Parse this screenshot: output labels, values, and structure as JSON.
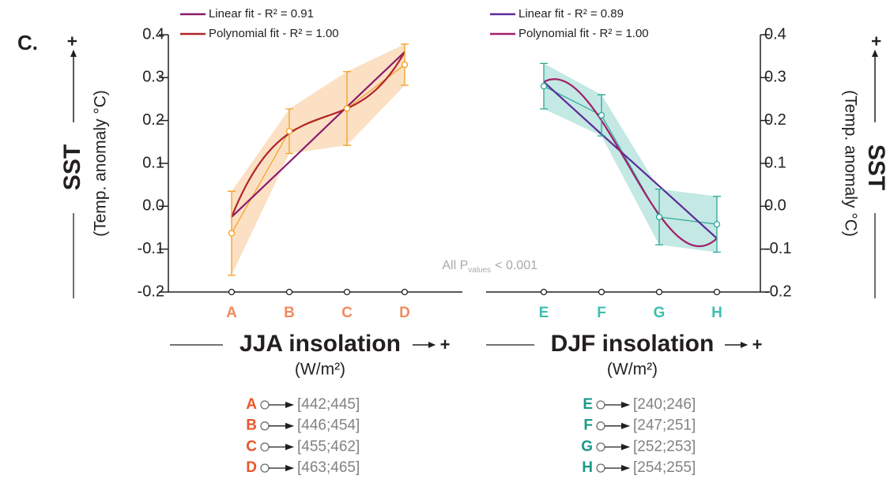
{
  "panel_label": "C.",
  "annotation": {
    "prefix": "All P",
    "subscript": "values",
    "suffix": "< 0.001"
  },
  "chart_data": [
    {
      "type": "line",
      "y_axis_side": "left",
      "x_axis_label": "JJA insolation",
      "x_axis_plus": "+",
      "x_axis_unit": "(W/m²)",
      "y_axis_label": "SST",
      "y_axis_plus": "+",
      "y_axis_sublabel": "(Temp. anomaly °C)",
      "categories": [
        "A",
        "B",
        "C",
        "D"
      ],
      "category_color": "#f08a60",
      "category_ranges": [
        "[442;445]",
        "[446;454]",
        "[455;462]",
        "[463;465]"
      ],
      "range_label_color": "#e8572a",
      "values": [
        -0.063,
        0.175,
        0.228,
        0.33
      ],
      "errors": [
        0.098,
        0.052,
        0.086,
        0.048
      ],
      "color": "#f4a020",
      "band_color": "#fbe0c4",
      "series": [
        {
          "name": "Linear fit - R² = 0.91",
          "fit": "linear",
          "color": "#8b1a6b",
          "values": [
            -0.025,
            0.103,
            0.232,
            0.36
          ]
        },
        {
          "name": "Polynomial fit - R² = 1.00",
          "fit": "polynomial",
          "color": "#b0252a",
          "values": [
            -0.025,
            0.17,
            0.228,
            0.36
          ]
        }
      ],
      "ylim": [
        -0.2,
        0.4
      ],
      "yticks": [
        0.4,
        0.3,
        0.2,
        0.1,
        {
          "value": 0,
          "label": "0.0"
        },
        -0.1,
        -0.2
      ]
    },
    {
      "type": "line",
      "y_axis_side": "right",
      "x_axis_label": "DJF insolation",
      "x_axis_plus": "+",
      "x_axis_unit": "(W/m²)",
      "y_axis_label": "SST",
      "y_axis_plus": "+",
      "y_axis_sublabel": "(Temp. anomaly °C)",
      "categories": [
        "E",
        "F",
        "G",
        "H"
      ],
      "category_color": "#3dbfb0",
      "category_ranges": [
        "[240;246]",
        "[247;251]",
        "[252;253]",
        "[254;255]"
      ],
      "range_label_color": "#1a9a8a",
      "values": [
        0.28,
        0.212,
        -0.025,
        -0.042
      ],
      "errors": [
        0.053,
        0.048,
        0.065,
        0.065
      ],
      "color": "#2aa89a",
      "band_color": "#c4e8e4",
      "series": [
        {
          "name": "Linear fit - R² = 0.89",
          "fit": "linear",
          "color": "#5b2a9a",
          "values": [
            0.29,
            0.168,
            0.047,
            -0.075
          ]
        },
        {
          "name": "Polynomial fit - R² = 1.00",
          "fit": "polynomial",
          "color": "#a0206a",
          "values": [
            0.29,
            0.2,
            -0.02,
            -0.075
          ]
        }
      ],
      "ylim": [
        -0.2,
        0.4
      ],
      "yticks": [
        0.4,
        0.3,
        0.2,
        0.1,
        {
          "value": 0,
          "label": "0.0"
        },
        -0.1,
        -0.2
      ]
    }
  ]
}
